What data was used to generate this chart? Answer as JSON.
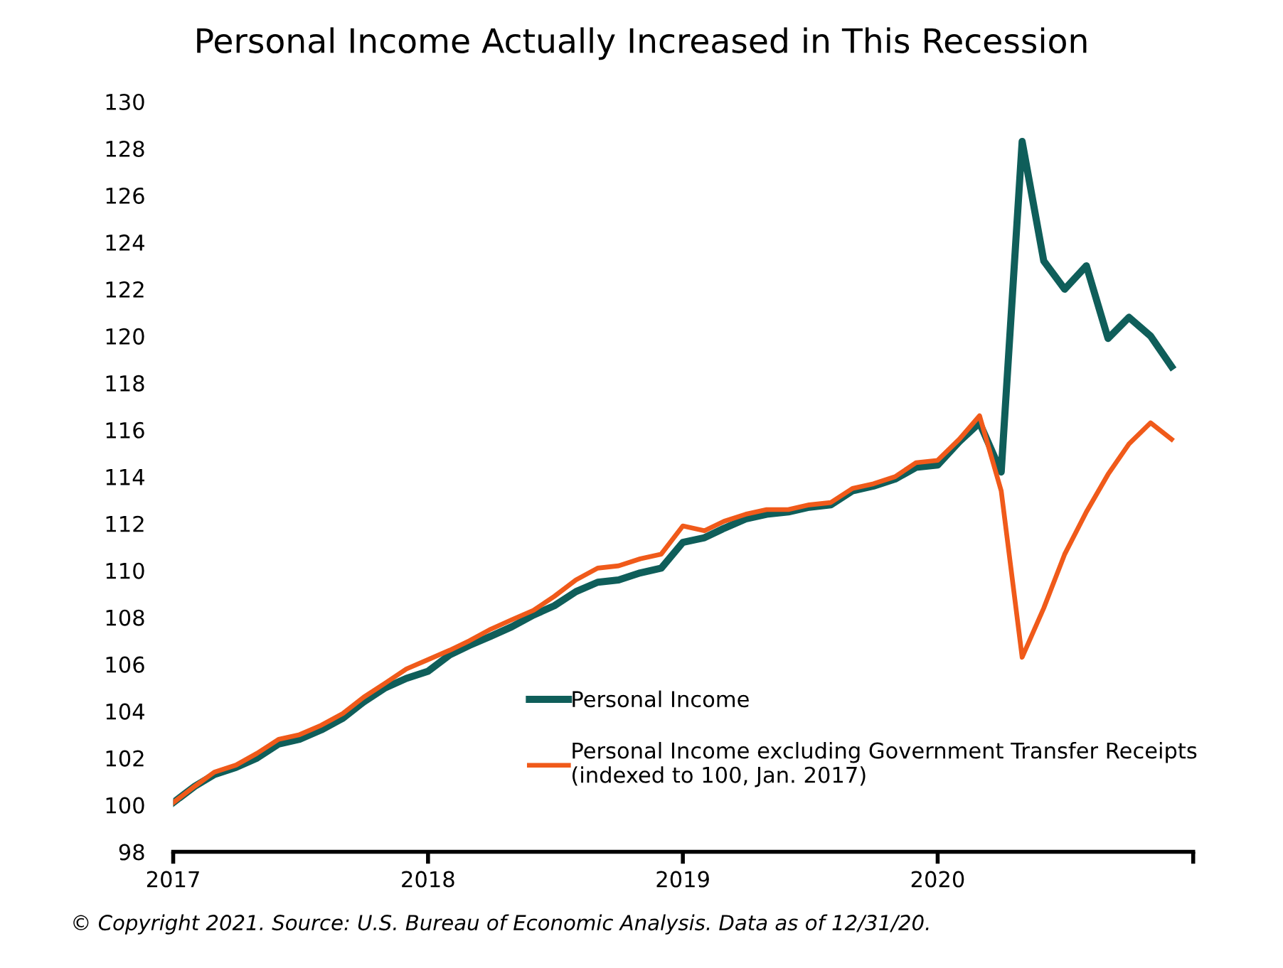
{
  "chart_data": {
    "type": "line",
    "title": "Personal Income Actually Increased in This Recession",
    "x": [
      "2017-01",
      "2017-02",
      "2017-03",
      "2017-04",
      "2017-05",
      "2017-06",
      "2017-07",
      "2017-08",
      "2017-09",
      "2017-10",
      "2017-11",
      "2017-12",
      "2018-01",
      "2018-02",
      "2018-03",
      "2018-04",
      "2018-05",
      "2018-06",
      "2018-07",
      "2018-08",
      "2018-09",
      "2018-10",
      "2018-11",
      "2018-12",
      "2019-01",
      "2019-02",
      "2019-03",
      "2019-04",
      "2019-05",
      "2019-06",
      "2019-07",
      "2019-08",
      "2019-09",
      "2019-10",
      "2019-11",
      "2019-12",
      "2020-01",
      "2020-02",
      "2020-03",
      "2020-04",
      "2020-05",
      "2020-06",
      "2020-07",
      "2020-08",
      "2020-09",
      "2020-10",
      "2020-11",
      "2020-12"
    ],
    "series": [
      {
        "name": "Personal Income",
        "color": "#0f5e5a",
        "values": [
          100.1,
          100.8,
          101.3,
          101.6,
          102.0,
          102.6,
          102.8,
          103.2,
          103.7,
          104.4,
          105.0,
          105.4,
          105.7,
          106.4,
          106.8,
          107.2,
          107.6,
          108.1,
          108.5,
          109.1,
          109.5,
          109.6,
          109.9,
          110.1,
          111.2,
          111.4,
          111.8,
          112.2,
          112.4,
          112.5,
          112.7,
          112.8,
          113.4,
          113.6,
          113.9,
          114.4,
          114.5,
          115.5,
          116.3,
          114.2,
          128.3,
          123.2,
          122.0,
          123.0,
          119.9,
          120.8,
          120.0,
          118.7
        ]
      },
      {
        "name": "Personal Income excluding Government Transfer Receipts\n(indexed to 100, Jan. 2017)",
        "color": "#f05a1a",
        "values": [
          100.1,
          100.8,
          101.4,
          101.7,
          102.2,
          102.8,
          103.0,
          103.4,
          103.9,
          104.6,
          105.2,
          105.8,
          106.2,
          106.6,
          107.0,
          107.5,
          107.9,
          108.3,
          108.9,
          109.6,
          110.1,
          110.2,
          110.5,
          110.7,
          111.9,
          111.7,
          112.1,
          112.4,
          112.6,
          112.6,
          112.8,
          112.9,
          113.5,
          113.7,
          114.0,
          114.6,
          114.7,
          115.6,
          116.6,
          113.4,
          106.3,
          108.4,
          110.7,
          112.5,
          114.1,
          115.4,
          116.3,
          115.6
        ]
      }
    ],
    "xlim": [
      "2017-01",
      "2021-01"
    ],
    "xticks": [
      {
        "value": "2017-01",
        "label": "2017"
      },
      {
        "value": "2018-01",
        "label": "2018"
      },
      {
        "value": "2019-01",
        "label": "2019"
      },
      {
        "value": "2020-01",
        "label": "2020"
      },
      {
        "value": "2021-01",
        "label": null
      }
    ],
    "ylim": [
      98,
      130
    ],
    "yticks": [
      98,
      100,
      102,
      104,
      106,
      108,
      110,
      112,
      114,
      116,
      118,
      120,
      122,
      124,
      126,
      128,
      130
    ],
    "grid": false,
    "legend": "bottom",
    "marker": "none",
    "line_style": "solid",
    "annotations": [
      "© Copyright 2021. Source: U.S. Bureau of Economic Analysis. Data as of 12/31/20."
    ]
  }
}
